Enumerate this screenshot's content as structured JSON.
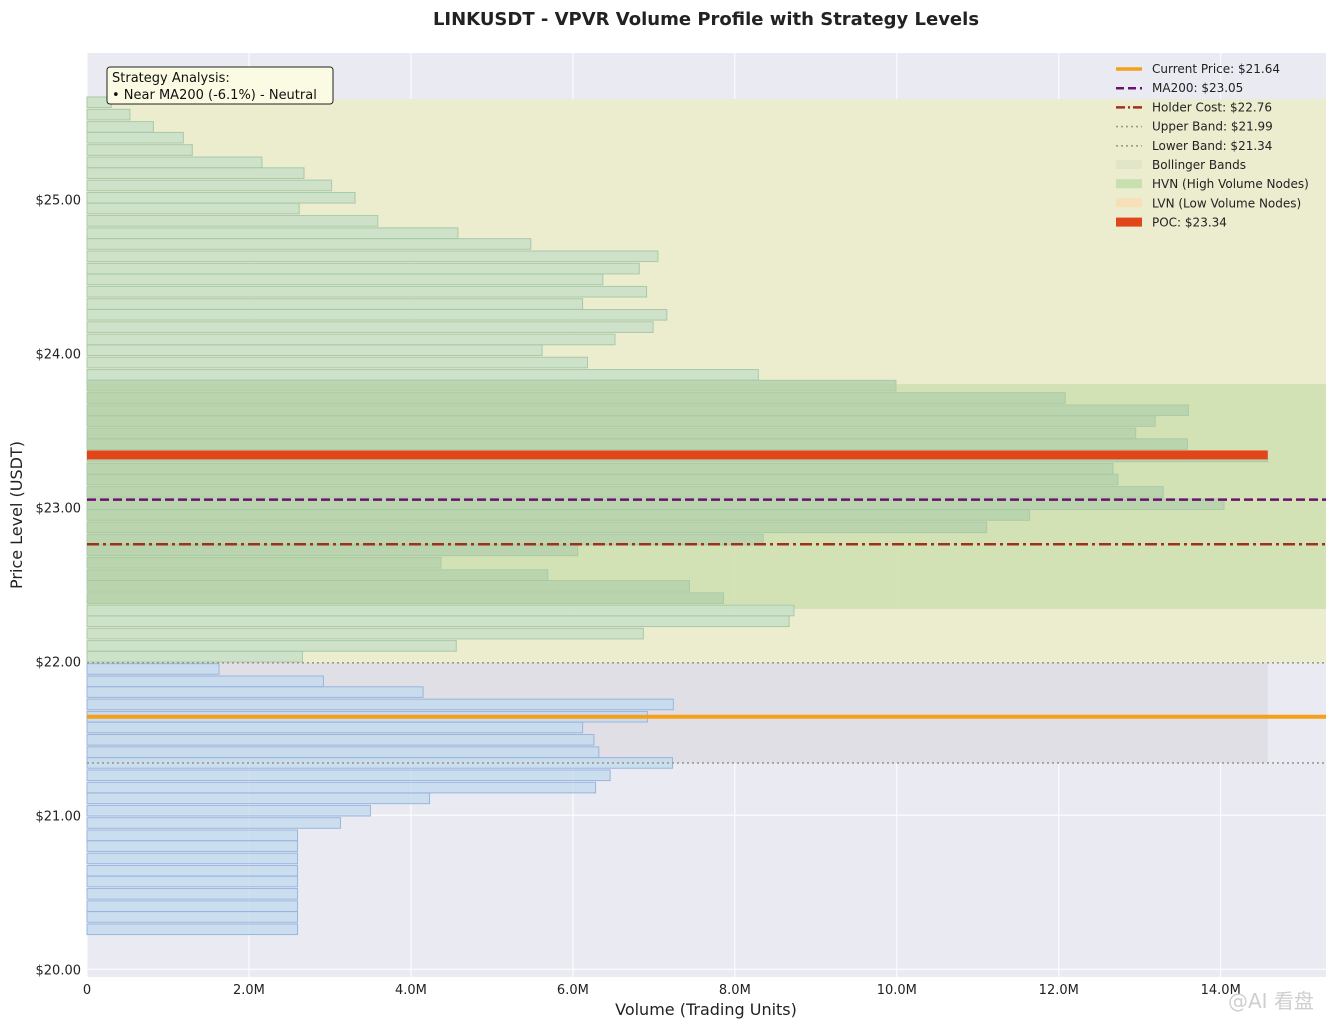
{
  "chart_data": {
    "type": "bar",
    "orientation": "horizontal",
    "title": "LINKUSDT - VPVR Volume Profile with Strategy Levels",
    "xlabel": "Volume (Trading Units)",
    "ylabel": "Price Level (USDT)",
    "xlim": [
      0,
      15300000
    ],
    "ylim": [
      19.95,
      25.95
    ],
    "x_ticks": [
      0,
      2000000,
      4000000,
      6000000,
      8000000,
      10000000,
      12000000,
      14000000
    ],
    "x_tick_labels": [
      "0",
      "2.0M",
      "4.0M",
      "6.0M",
      "8.0M",
      "10.0M",
      "12.0M",
      "14.0M"
    ],
    "y_ticks": [
      20,
      21,
      22,
      23,
      24,
      25
    ],
    "y_tick_labels": [
      "$20.00",
      "$21.00",
      "$22.00",
      "$23.00",
      "$24.00",
      "$25.00"
    ],
    "grid": true,
    "bin_height": 0.0765,
    "bins": [
      {
        "price": 20.26,
        "volume": 2600000
      },
      {
        "price": 20.34,
        "volume": 2600000
      },
      {
        "price": 20.41,
        "volume": 2600000
      },
      {
        "price": 20.49,
        "volume": 2600000
      },
      {
        "price": 20.57,
        "volume": 2600000
      },
      {
        "price": 20.64,
        "volume": 2600000
      },
      {
        "price": 20.72,
        "volume": 2600000
      },
      {
        "price": 20.8,
        "volume": 2600000
      },
      {
        "price": 20.87,
        "volume": 2600000
      },
      {
        "price": 20.95,
        "volume": 3130000
      },
      {
        "price": 21.03,
        "volume": 3500000
      },
      {
        "price": 21.11,
        "volume": 4230000
      },
      {
        "price": 21.18,
        "volume": 6280000
      },
      {
        "price": 21.26,
        "volume": 6460000
      },
      {
        "price": 21.34,
        "volume": 7230000
      },
      {
        "price": 21.41,
        "volume": 6320000
      },
      {
        "price": 21.49,
        "volume": 6260000
      },
      {
        "price": 21.57,
        "volume": 6120000
      },
      {
        "price": 21.64,
        "volume": 6920000
      },
      {
        "price": 21.72,
        "volume": 7240000
      },
      {
        "price": 21.8,
        "volume": 4150000
      },
      {
        "price": 21.87,
        "volume": 2920000
      },
      {
        "price": 21.95,
        "volume": 1630000
      },
      {
        "price": 22.03,
        "volume": 2660000
      },
      {
        "price": 22.1,
        "volume": 4560000
      },
      {
        "price": 22.18,
        "volume": 6870000
      },
      {
        "price": 22.26,
        "volume": 8670000
      },
      {
        "price": 22.33,
        "volume": 8730000
      },
      {
        "price": 22.41,
        "volume": 7860000
      },
      {
        "price": 22.49,
        "volume": 7440000
      },
      {
        "price": 22.56,
        "volume": 5690000
      },
      {
        "price": 22.64,
        "volume": 4370000
      },
      {
        "price": 22.72,
        "volume": 6060000
      },
      {
        "price": 22.79,
        "volume": 8350000
      },
      {
        "price": 22.87,
        "volume": 11110000
      },
      {
        "price": 22.95,
        "volume": 11640000
      },
      {
        "price": 23.02,
        "volume": 14040000
      },
      {
        "price": 23.1,
        "volume": 13290000
      },
      {
        "price": 23.18,
        "volume": 12730000
      },
      {
        "price": 23.25,
        "volume": 12670000
      },
      {
        "price": 23.33,
        "volume": 14580000
      },
      {
        "price": 23.41,
        "volume": 13590000
      },
      {
        "price": 23.48,
        "volume": 12950000
      },
      {
        "price": 23.56,
        "volume": 13190000
      },
      {
        "price": 23.63,
        "volume": 13600000
      },
      {
        "price": 23.71,
        "volume": 12080000
      },
      {
        "price": 23.79,
        "volume": 9990000
      },
      {
        "price": 23.86,
        "volume": 8290000
      },
      {
        "price": 23.94,
        "volume": 6180000
      },
      {
        "price": 24.02,
        "volume": 5620000
      },
      {
        "price": 24.09,
        "volume": 6520000
      },
      {
        "price": 24.17,
        "volume": 6990000
      },
      {
        "price": 24.25,
        "volume": 7160000
      },
      {
        "price": 24.32,
        "volume": 6120000
      },
      {
        "price": 24.4,
        "volume": 6910000
      },
      {
        "price": 24.48,
        "volume": 6370000
      },
      {
        "price": 24.55,
        "volume": 6820000
      },
      {
        "price": 24.63,
        "volume": 7050000
      },
      {
        "price": 24.71,
        "volume": 5480000
      },
      {
        "price": 24.78,
        "volume": 4580000
      },
      {
        "price": 24.86,
        "volume": 3590000
      },
      {
        "price": 24.94,
        "volume": 2620000
      },
      {
        "price": 25.01,
        "volume": 3310000
      },
      {
        "price": 25.09,
        "volume": 3020000
      },
      {
        "price": 25.17,
        "volume": 2680000
      },
      {
        "price": 25.24,
        "volume": 2160000
      },
      {
        "price": 25.32,
        "volume": 1300000
      },
      {
        "price": 25.4,
        "volume": 1190000
      },
      {
        "price": 25.47,
        "volume": 820000
      },
      {
        "price": 25.55,
        "volume": 530000
      },
      {
        "price": 25.63,
        "volume": 300000
      }
    ],
    "poc": {
      "price": 23.34,
      "volume": 14580000
    },
    "hvn_range": [
      22.34,
      23.8
    ],
    "bollinger_range": [
      21.34,
      25.65
    ],
    "levels": {
      "current_price": 21.64,
      "ma200": 23.05,
      "holder_cost": 22.76,
      "upper_band": 21.99,
      "lower_band": 21.34
    },
    "colors": {
      "background": "#eaeaf2",
      "bollinger_fill": "#ececcc",
      "hvn_fill": "#cfe0b0",
      "gray_band": "#dfdfe5",
      "bar_upper": "#c9e0c8",
      "bar_upper_edge": "#a9c9a8",
      "bar_hvn": "#b5d2ad",
      "bar_lower": "#c5dcef",
      "bar_lower_edge": "#9ab5de",
      "current_price": "#f5a018",
      "ma200": "#6a1270",
      "holder_cost": "#a0311f",
      "bands": "#9a9a8a",
      "poc": "#e0461a"
    },
    "legend": {
      "position": "top-right",
      "items": [
        {
          "label": "Current Price: $21.64",
          "style": "solid-line",
          "color": "#f5a018"
        },
        {
          "label": "MA200: $23.05",
          "style": "dashed-line",
          "color": "#6a1270"
        },
        {
          "label": "Holder Cost: $22.76",
          "style": "dashdot-line",
          "color": "#a0311f"
        },
        {
          "label": "Upper Band: $21.99",
          "style": "dotted-line",
          "color": "#9a9a8a"
        },
        {
          "label": "Lower Band: $21.34",
          "style": "dotted-line",
          "color": "#9a9a8a"
        },
        {
          "label": "Bollinger Bands",
          "style": "patch",
          "color": "#e2e6c8"
        },
        {
          "label": "HVN (High Volume Nodes)",
          "style": "patch",
          "color": "#c8e0b0"
        },
        {
          "label": "LVN (Low Volume Nodes)",
          "style": "patch",
          "color": "#f5e0b8"
        },
        {
          "label": "POC: $23.34",
          "style": "patch",
          "color": "#e0461a"
        }
      ]
    },
    "annotation": {
      "title": "Strategy Analysis:",
      "line": "• Near MA200 (-6.1%) - Neutral"
    }
  },
  "watermark": "@AI 看盘"
}
